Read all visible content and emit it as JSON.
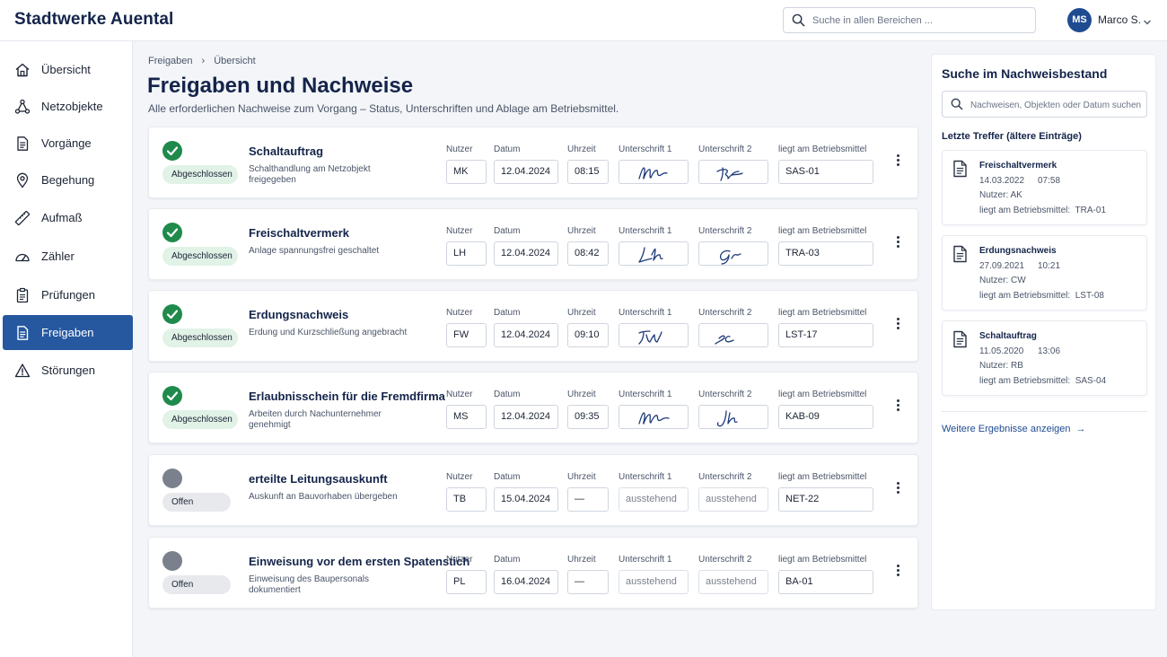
{
  "header": {
    "brand": "Stadtwerke Auental",
    "search_placeholder": "Suche in allen Bereichen ...",
    "user_initials": "MS",
    "user_name": "Marco S."
  },
  "sidebar": {
    "items": [
      {
        "label": "Übersicht",
        "icon": "home-icon"
      },
      {
        "label": "Netzobjekte",
        "icon": "network-icon"
      },
      {
        "label": "Vorgänge",
        "icon": "document-icon"
      },
      {
        "label": "Begehung",
        "icon": "location-pin-icon"
      },
      {
        "label": "Aufmaß",
        "icon": "ruler-icon"
      },
      {
        "label": "Zähler",
        "icon": "gauge-icon"
      },
      {
        "label": "Prüfungen",
        "icon": "clipboard-check-icon"
      },
      {
        "label": "Freigaben",
        "icon": "document-approved-icon",
        "active": true
      },
      {
        "label": "Störungen",
        "icon": "warning-icon"
      }
    ]
  },
  "breadcrumb": {
    "root": "Freigaben",
    "current": "Übersicht"
  },
  "page": {
    "title": "Freigaben und Nachweise",
    "subtitle": "Alle erforderlichen Nachweise zum Vorgang – Status, Unterschriften und Ablage am Betriebsmittel."
  },
  "field_labels": {
    "user": "Nutzer",
    "date": "Datum",
    "time": "Uhrzeit",
    "sig1": "Unterschrift 1",
    "sig2": "Unterschrift 2",
    "location": "liegt am Betriebsmittel"
  },
  "colors": {
    "done": "#1f8a4c",
    "open": "#7b818c",
    "accent": "#25589f"
  },
  "records": [
    {
      "status": "done",
      "status_label": "Abgeschlossen",
      "title": "Schaltauftrag",
      "description": "Schalthandlung am Netzobjekt freigegeben",
      "user": "MK",
      "date": "12.04.2024",
      "time": "08:15",
      "sig1": "signed",
      "sig2": "signed",
      "location": "SAS-01"
    },
    {
      "status": "done",
      "status_label": "Abgeschlossen",
      "title": "Freischaltvermerk",
      "description": "Anlage spannungsfrei geschaltet",
      "user": "LH",
      "date": "12.04.2024",
      "time": "08:42",
      "sig1": "signed",
      "sig2": "signed",
      "location": "TRA-03"
    },
    {
      "status": "done",
      "status_label": "Abgeschlossen",
      "title": "Erdungsnachweis",
      "description": "Erdung und Kurzschließung angebracht",
      "user": "FW",
      "date": "12.04.2024",
      "time": "09:10",
      "sig1": "signed",
      "sig2": "signed",
      "location": "LST-17"
    },
    {
      "status": "done",
      "status_label": "Abgeschlossen",
      "title": "Erlaubnisschein für die Fremdfirma",
      "description": "Arbeiten durch Nachunternehmer genehmigt",
      "user": "MS",
      "date": "12.04.2024",
      "time": "09:35",
      "sig1": "signed",
      "sig2": "signed",
      "location": "KAB-09"
    },
    {
      "status": "open",
      "status_label": "Offen",
      "title": "erteilte Leitungsauskunft",
      "description": "Auskunft an Bauvorhaben übergeben",
      "user": "TB",
      "date": "15.04.2024",
      "time": "—",
      "sig1": "ausstehend",
      "sig2": "ausstehend",
      "location": "NET-22"
    },
    {
      "status": "open",
      "status_label": "Offen",
      "title": "Einweisung vor dem ersten Spatenstich",
      "description": "Einweisung des Baupersonals dokumentiert",
      "user": "PL",
      "date": "16.04.2024",
      "time": "—",
      "sig1": "ausstehend",
      "sig2": "ausstehend",
      "location": "BA-01"
    }
  ],
  "right_panel": {
    "title": "Suche im Nachweisbestand",
    "search_placeholder": "Nachweisen, Objekten oder Datum suchen ...",
    "recent_label": "Letzte Treffer (ältere Einträge)",
    "hits": [
      {
        "title": "Freischaltvermerk",
        "date": "14.03.2022",
        "time": "07:58",
        "user_label": "Nutzer:",
        "user": "AK",
        "location_label": "liegt am Betriebsmittel:",
        "location": "TRA-01"
      },
      {
        "title": "Erdungsnachweis",
        "date": "27.09.2021",
        "time": "10:21",
        "user_label": "Nutzer:",
        "user": "CW",
        "location_label": "liegt am Betriebsmittel:",
        "location": "LST-08"
      },
      {
        "title": "Schaltauftrag",
        "date": "11.05.2020",
        "time": "13:06",
        "user_label": "Nutzer:",
        "user": "RB",
        "location_label": "liegt am Betriebsmittel:",
        "location": "SAS-04"
      }
    ],
    "more_link": "Weitere Ergebnisse anzeigen"
  }
}
